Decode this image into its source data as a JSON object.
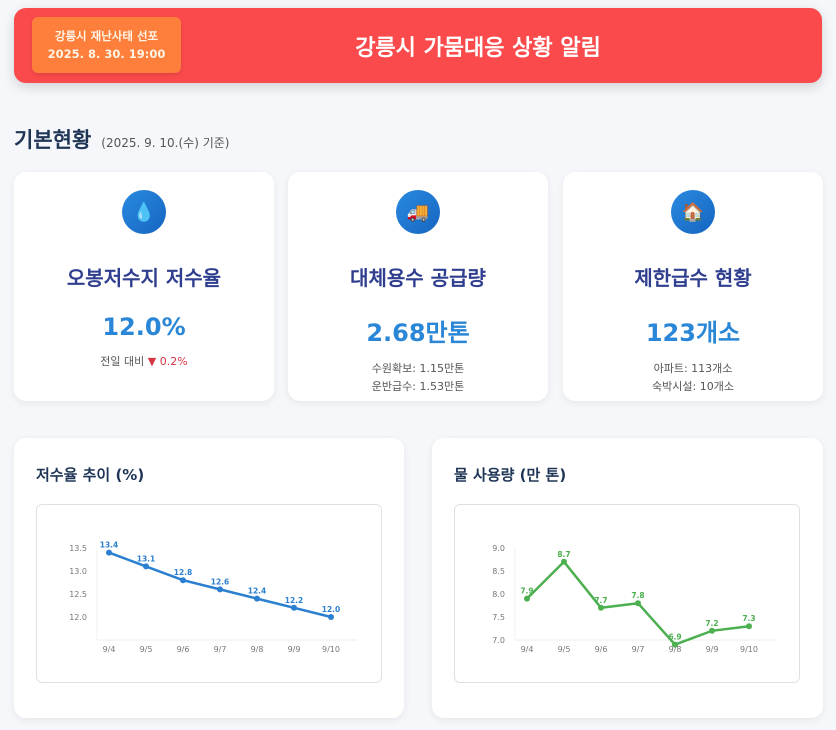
{
  "header": {
    "badge_line1": "강릉시 재난사태 선포",
    "badge_line2": "2025. 8. 30. 19:00",
    "title": "강릉시 가뭄대응 상황 알림"
  },
  "section": {
    "title": "기본현황",
    "date": "(2025. 9. 10.(수) 기준)"
  },
  "cards": [
    {
      "icon": "water-drop-icon",
      "title": "오봉저수지 저수율",
      "value": "12.0%",
      "sub_label": "전일 대비",
      "sub_change": "▼ 0.2%"
    },
    {
      "icon": "truck-icon",
      "title": "대체용수 공급량",
      "value": "2.68만톤",
      "sub1": "수원확보: 1.15만톤",
      "sub2": "운반급수: 1.53만톤"
    },
    {
      "icon": "house-icon",
      "title": "제한급수 현황",
      "value": "123개소",
      "sub1": "아파트: 113개소",
      "sub2": "숙박시설: 10개소"
    }
  ],
  "chart_data": [
    {
      "type": "line",
      "title": "저수율 추이 (%)",
      "categories": [
        "9/4",
        "9/5",
        "9/6",
        "9/7",
        "9/8",
        "9/9",
        "9/10"
      ],
      "values": [
        13.4,
        13.1,
        12.8,
        12.6,
        12.4,
        12.2,
        12.0
      ],
      "yticks": [
        "12.0",
        "12.5",
        "13.0",
        "13.5"
      ],
      "ylim": [
        11.5,
        13.5
      ],
      "color": "#2a7fd0"
    },
    {
      "type": "line",
      "title": "물 사용량 (만 톤)",
      "categories": [
        "9/4",
        "9/5",
        "9/6",
        "9/7",
        "9/8",
        "9/9",
        "9/10"
      ],
      "values": [
        7.9,
        8.7,
        7.7,
        7.8,
        6.9,
        7.2,
        7.3
      ],
      "yticks": [
        "7.0",
        "7.5",
        "8.0",
        "8.5",
        "9.0"
      ],
      "ylim": [
        7.0,
        9.0
      ],
      "color": "#4caf50"
    }
  ]
}
